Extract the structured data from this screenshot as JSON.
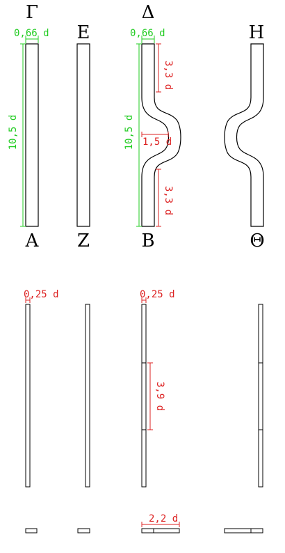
{
  "vertex_labels": {
    "gamma": "Γ",
    "epsilon": "Ε",
    "delta": "Δ",
    "eta": "Η",
    "alpha": "Α",
    "zeta": "Ζ",
    "beta": "Β",
    "theta": "Θ"
  },
  "dimensions": {
    "width_a": "0,66 d",
    "width_b": "0,66 d",
    "height_a": "10,5 d",
    "height_b": "10,5 d",
    "bend_top": "3,3 d",
    "bend_bottom": "3,3 d",
    "bend_offset": "1,5 d",
    "thickness_a": "0,25 d",
    "thickness_b": "0,25 d",
    "mid_segment": "3,9 d",
    "base_width": "2,2 d"
  },
  "colors": {
    "dimension_green": "#22cc22",
    "dimension_red": "#dd2222",
    "outline": "#000000"
  }
}
